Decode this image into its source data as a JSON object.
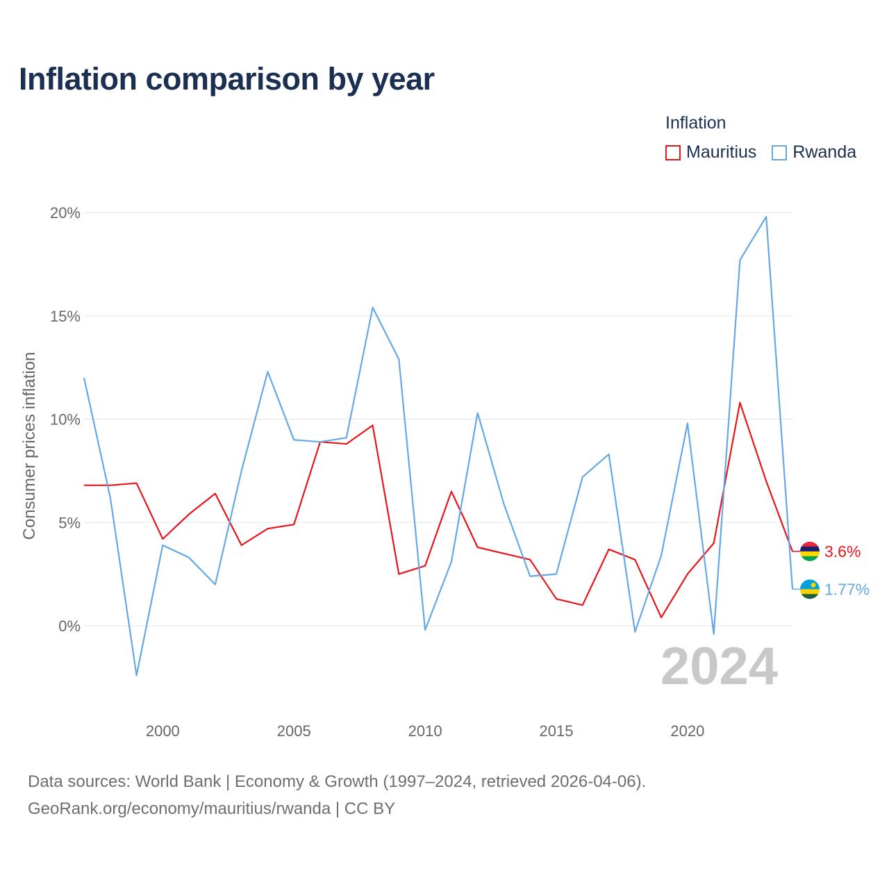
{
  "title": "Inflation comparison by year",
  "legend": {
    "title": "Inflation",
    "items": [
      {
        "name": "Mauritius",
        "color": "#e8141b"
      },
      {
        "name": "Rwanda",
        "color": "#64a8e4"
      }
    ]
  },
  "footer": {
    "line1": "Data sources: World Bank | Economy & Growth (1997–2024, retrieved 2026-04-06).",
    "line2": "GeoRank.org/economy/mauritius/rwanda | CC BY"
  },
  "chart_data": {
    "type": "line",
    "title": "Inflation comparison by year",
    "xlabel": "",
    "ylabel": "Consumer prices inflation",
    "year_label": "2024",
    "x": [
      1997,
      1998,
      1999,
      2000,
      2001,
      2002,
      2003,
      2004,
      2005,
      2006,
      2007,
      2008,
      2009,
      2010,
      2011,
      2012,
      2013,
      2014,
      2015,
      2016,
      2017,
      2018,
      2019,
      2020,
      2021,
      2022,
      2023,
      2024
    ],
    "xticks": [
      2000,
      2005,
      2010,
      2015,
      2020
    ],
    "xlim": [
      1997,
      2024
    ],
    "yticks": [
      0,
      5,
      10,
      15,
      20
    ],
    "ytick_labels": [
      "0%",
      "5%",
      "10%",
      "15%",
      "20%"
    ],
    "ylim": [
      -3.5,
      20
    ],
    "grid": true,
    "series": [
      {
        "name": "Mauritius",
        "color": "#e8141b",
        "values": [
          6.8,
          6.8,
          6.9,
          4.2,
          5.4,
          6.4,
          3.9,
          4.7,
          4.9,
          8.9,
          8.8,
          9.7,
          2.5,
          2.9,
          6.5,
          3.8,
          3.5,
          3.2,
          1.3,
          1.0,
          3.7,
          3.2,
          0.4,
          2.5,
          4.0,
          10.8,
          7.0,
          3.6
        ],
        "end_label": "3.6%"
      },
      {
        "name": "Rwanda",
        "color": "#64a8e4",
        "values": [
          12.0,
          6.2,
          -2.4,
          3.9,
          3.3,
          2.0,
          7.5,
          12.3,
          9.0,
          8.9,
          9.1,
          15.4,
          12.9,
          -0.2,
          3.1,
          10.3,
          5.9,
          2.4,
          2.5,
          7.2,
          8.3,
          -0.3,
          3.4,
          9.8,
          -0.4,
          17.7,
          19.8,
          1.77
        ],
        "end_label": "1.77%"
      }
    ]
  }
}
